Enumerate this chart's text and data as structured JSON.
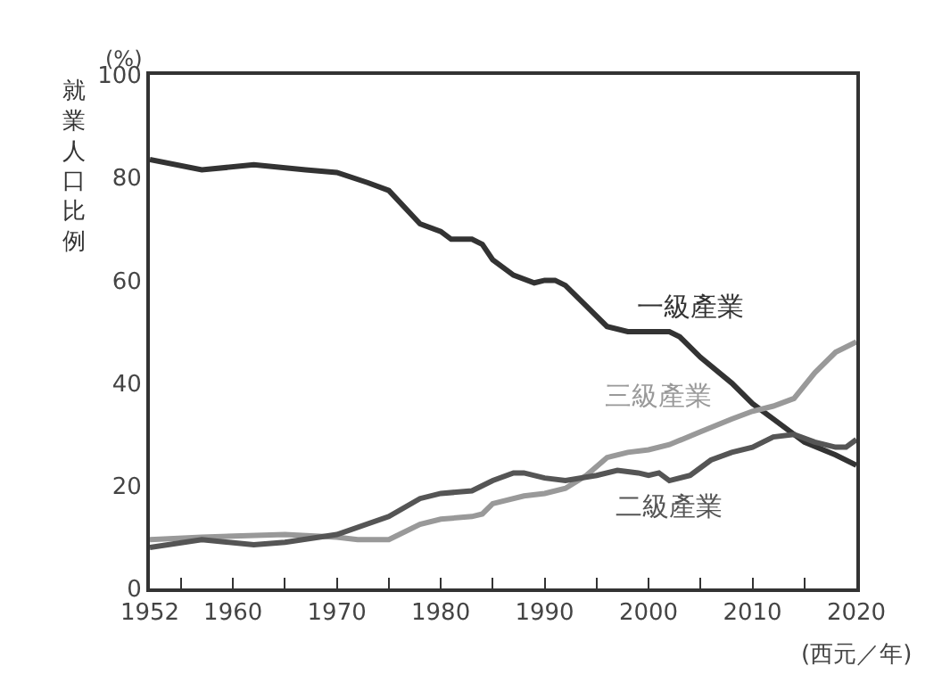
{
  "chart_data": {
    "type": "line",
    "ylabel": "就業人口比例",
    "xlabel": "(西元／年)",
    "annotations": [
      "(%)"
    ],
    "xlim": [
      1952,
      2020
    ],
    "xticks": [
      1952,
      {
        "value": 1955,
        "label": null
      },
      1960,
      {
        "value": 1965,
        "label": null
      },
      1970,
      {
        "value": 1975,
        "label": null
      },
      1980,
      {
        "value": 1985,
        "label": null
      },
      1990,
      {
        "value": 1995,
        "label": null
      },
      2000,
      {
        "value": 2005,
        "label": null
      },
      2010,
      {
        "value": 2015,
        "label": null
      },
      2020
    ],
    "ylim": [
      0,
      100
    ],
    "yticks": [
      0,
      20,
      40,
      60,
      80,
      100
    ],
    "legend": false,
    "marker": "none",
    "line_style": "solid",
    "series": [
      {
        "name": "一級產業",
        "color": "#333333",
        "x": [
          1952,
          1957,
          1962,
          1967,
          1970,
          1973,
          1975,
          1978,
          1980,
          1981,
          1983,
          1984,
          1985,
          1987,
          1989,
          1990,
          1991,
          1992,
          1994,
          1996,
          1998,
          2000,
          2002,
          2003,
          2005,
          2008,
          2010,
          2012,
          2015,
          2018,
          2020
        ],
        "values": [
          83.5,
          81.5,
          82.5,
          81.5,
          81,
          79,
          77.5,
          71,
          69.5,
          68,
          68,
          67,
          64,
          61,
          59.5,
          60,
          60,
          59,
          55,
          51,
          50,
          50,
          50,
          49,
          45,
          40,
          36,
          33,
          28.5,
          26,
          24
        ]
      },
      {
        "name": "三級產業",
        "color": "#999999",
        "x": [
          1952,
          1957,
          1965,
          1970,
          1972,
          1975,
          1978,
          1980,
          1983,
          1984,
          1985,
          1988,
          1990,
          1992,
          1994,
          1996,
          1998,
          2000,
          2002,
          2005,
          2008,
          2010,
          2012,
          2014,
          2016,
          2018,
          2020
        ],
        "values": [
          9.5,
          10,
          10.5,
          10,
          9.5,
          9.5,
          12.5,
          13.5,
          14,
          14.5,
          16.5,
          18,
          18.5,
          19.5,
          22,
          25.5,
          26.5,
          27,
          28,
          30.5,
          33,
          34.5,
          35.5,
          37,
          42,
          46,
          48
        ]
      },
      {
        "name": "二級產業",
        "color": "#555555",
        "x": [
          1952,
          1957,
          1962,
          1965,
          1970,
          1975,
          1978,
          1980,
          1983,
          1985,
          1987,
          1988,
          1990,
          1992,
          1995,
          1997,
          1999,
          2000,
          2001,
          2002,
          2004,
          2006,
          2008,
          2010,
          2012,
          2014,
          2016,
          2018,
          2019,
          2020
        ],
        "values": [
          8,
          9.5,
          8.5,
          9,
          10.5,
          14,
          17.5,
          18.5,
          19,
          21,
          22.5,
          22.5,
          21.5,
          21,
          22,
          23,
          22.5,
          22,
          22.5,
          21,
          22,
          25,
          26.5,
          27.5,
          29.5,
          30,
          28.5,
          27.5,
          27.5,
          29
        ]
      }
    ]
  }
}
